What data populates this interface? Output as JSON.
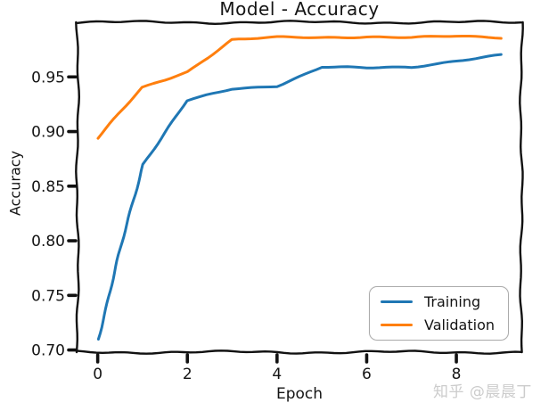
{
  "watermark": {
    "text": "知乎 @晨晨丁"
  },
  "chart_data": {
    "type": "line",
    "style": "xkcd-sketch",
    "title": "Model - Accuracy",
    "xlabel": "Epoch",
    "ylabel": "Accuracy",
    "x": [
      0,
      1,
      2,
      3,
      4,
      5,
      6,
      7,
      8,
      9
    ],
    "series": [
      {
        "name": "Training",
        "color": "#1f77b4",
        "values": [
          0.71,
          0.87,
          0.928,
          0.939,
          0.942,
          0.959,
          0.958,
          0.959,
          0.965,
          0.97
        ]
      },
      {
        "name": "Validation",
        "color": "#ff7f0e",
        "values": [
          0.894,
          0.94,
          0.955,
          0.984,
          0.986,
          0.986,
          0.987,
          0.986,
          0.987,
          0.986
        ]
      }
    ],
    "xticks": [
      "0",
      "2",
      "4",
      "6",
      "8"
    ],
    "xtick_values": [
      0,
      2,
      4,
      6,
      8
    ],
    "yticks": [
      "0.70",
      "0.75",
      "0.80",
      "0.85",
      "0.90",
      "0.95"
    ],
    "ytick_values": [
      0.7,
      0.75,
      0.8,
      0.85,
      0.9,
      0.95
    ],
    "xlim": [
      -0.45,
      9.45
    ],
    "ylim": [
      0.698,
      1.0
    ],
    "grid": false,
    "legend_position": "lower right",
    "axis_color": "#111111",
    "text_color": "#141414",
    "tick_fontsize": 17
  }
}
